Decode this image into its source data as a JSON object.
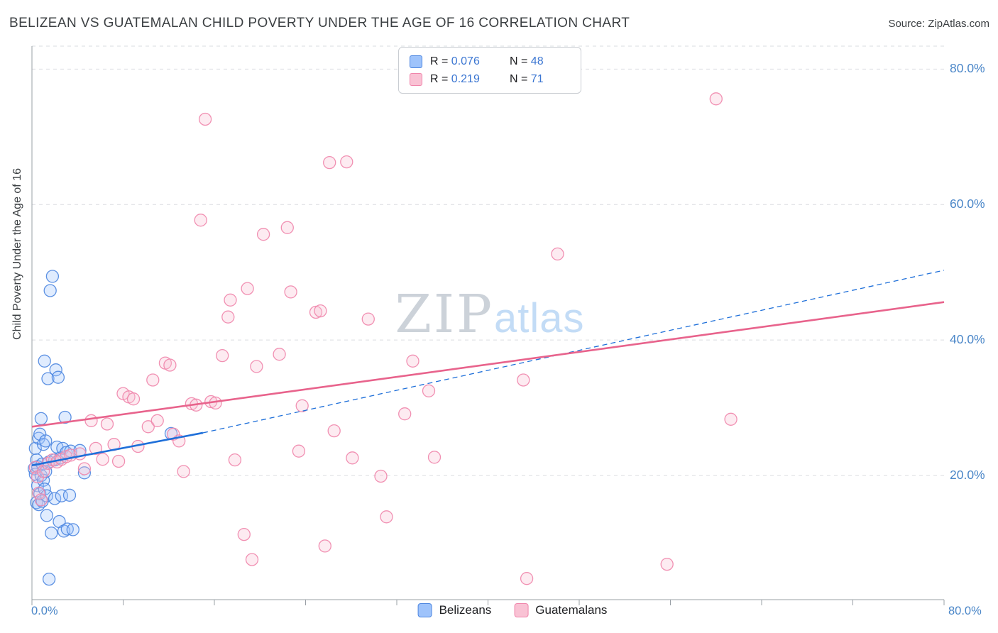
{
  "header": {
    "title": "BELIZEAN VS GUATEMALAN CHILD POVERTY UNDER THE AGE OF 16 CORRELATION CHART",
    "source": "Source: ZipAtlas.com"
  },
  "watermark": {
    "zip": "ZIP",
    "atlas": "atlas"
  },
  "legend_box": {
    "rows": [
      {
        "r_label": "R =",
        "r_value": "0.076",
        "n_label": "N =",
        "n_value": "48"
      },
      {
        "r_label": "R =",
        "r_value": "0.219",
        "n_label": "N =",
        "n_value": "71"
      }
    ]
  },
  "axes": {
    "y_label": "Child Poverty Under the Age of 16",
    "x_min_label": "0.0%",
    "x_max_label": "80.0%"
  },
  "bottom_legend": [
    {
      "label": "Belizeans"
    },
    {
      "label": "Guatemalans"
    }
  ],
  "colors": {
    "accent_blue": "#4a86c8",
    "value_blue": "#3b76d2",
    "blue_fill": "#9ec3fb",
    "blue_stroke": "#4d86e0",
    "pink_fill": "#f9c2d4",
    "pink_stroke": "#f085ab",
    "blue_trend": "#1e6fd9",
    "pink_trend": "#e8638c",
    "grid": "#dadce0",
    "axis": "#9aa0a6"
  },
  "chart_data": {
    "type": "scatter",
    "title": "BELIZEAN VS GUATEMALAN CHILD POVERTY UNDER THE AGE OF 16 CORRELATION CHART",
    "xlabel": "",
    "ylabel": "Child Poverty Under the Age of 16",
    "xlim": [
      0,
      80
    ],
    "ylim": [
      0,
      84
    ],
    "grid": true,
    "legend_position": "top-center",
    "x_tick_count": 11,
    "y_ticks": [
      {
        "value": 20,
        "label": "20.0%"
      },
      {
        "value": 40,
        "label": "40.0%"
      },
      {
        "value": 60,
        "label": "60.0%"
      },
      {
        "value": 80,
        "label": "80.0%"
      }
    ],
    "series": [
      {
        "name": "Belizeans",
        "R": 0.076,
        "N": 48,
        "fill": "#9ec3fb",
        "stroke": "#4d86e0",
        "trend_color": "#1e6fd9",
        "trend_solid": [
          [
            0,
            21.5
          ],
          [
            15,
            26.3
          ]
        ],
        "trend_dashed": [
          [
            15,
            26.3
          ],
          [
            80,
            50.3
          ]
        ],
        "points": [
          [
            0.2,
            21.0
          ],
          [
            0.3,
            20.2
          ],
          [
            0.3,
            24.0
          ],
          [
            0.4,
            16.0
          ],
          [
            0.4,
            22.3
          ],
          [
            0.5,
            18.5
          ],
          [
            0.5,
            21.3
          ],
          [
            0.6,
            15.7
          ],
          [
            0.6,
            25.5
          ],
          [
            0.7,
            17.3
          ],
          [
            0.7,
            26.1
          ],
          [
            0.8,
            20.0
          ],
          [
            0.8,
            28.4
          ],
          [
            0.9,
            16.2
          ],
          [
            0.9,
            21.7
          ],
          [
            1.0,
            19.3
          ],
          [
            1.0,
            24.6
          ],
          [
            1.1,
            18.0
          ],
          [
            1.1,
            36.9
          ],
          [
            1.2,
            20.6
          ],
          [
            1.2,
            25.1
          ],
          [
            1.3,
            14.1
          ],
          [
            1.3,
            17.0
          ],
          [
            1.4,
            34.3
          ],
          [
            1.5,
            4.7
          ],
          [
            1.5,
            22.0
          ],
          [
            1.6,
            47.3
          ],
          [
            1.7,
            11.5
          ],
          [
            1.8,
            49.4
          ],
          [
            2.0,
            16.6
          ],
          [
            2.0,
            22.3
          ],
          [
            2.1,
            35.6
          ],
          [
            2.2,
            24.2
          ],
          [
            2.3,
            34.5
          ],
          [
            2.4,
            13.2
          ],
          [
            2.5,
            22.6
          ],
          [
            2.6,
            17.0
          ],
          [
            2.7,
            24.0
          ],
          [
            2.8,
            11.8
          ],
          [
            2.9,
            28.6
          ],
          [
            3.0,
            23.4
          ],
          [
            3.1,
            12.1
          ],
          [
            3.3,
            17.1
          ],
          [
            3.4,
            23.6
          ],
          [
            3.6,
            12.0
          ],
          [
            4.2,
            23.7
          ],
          [
            4.6,
            20.4
          ],
          [
            12.2,
            26.2
          ]
        ]
      },
      {
        "name": "Guatemalans",
        "R": 0.219,
        "N": 71,
        "fill": "#f9c2d4",
        "stroke": "#f085ab",
        "trend_color": "#e8638c",
        "trend_solid": [
          [
            0,
            27.2
          ],
          [
            80,
            45.6
          ]
        ],
        "points": [
          [
            0.3,
            21.2
          ],
          [
            0.5,
            19.8
          ],
          [
            0.6,
            17.4
          ],
          [
            0.8,
            16.4
          ],
          [
            1.0,
            20.6
          ],
          [
            1.4,
            21.8
          ],
          [
            1.8,
            22.3
          ],
          [
            2.2,
            22.0
          ],
          [
            2.6,
            22.4
          ],
          [
            3.0,
            22.8
          ],
          [
            3.4,
            23.0
          ],
          [
            4.2,
            23.2
          ],
          [
            4.6,
            21.0
          ],
          [
            5.2,
            28.1
          ],
          [
            5.6,
            24.0
          ],
          [
            6.2,
            22.4
          ],
          [
            6.6,
            27.6
          ],
          [
            7.2,
            24.6
          ],
          [
            7.6,
            22.1
          ],
          [
            8.0,
            32.1
          ],
          [
            8.5,
            31.6
          ],
          [
            8.9,
            31.3
          ],
          [
            9.3,
            24.3
          ],
          [
            10.2,
            27.2
          ],
          [
            10.6,
            34.1
          ],
          [
            11.0,
            28.1
          ],
          [
            11.7,
            36.6
          ],
          [
            12.1,
            36.3
          ],
          [
            12.4,
            26.1
          ],
          [
            12.9,
            25.1
          ],
          [
            13.3,
            20.6
          ],
          [
            14.0,
            30.6
          ],
          [
            14.4,
            30.4
          ],
          [
            14.8,
            57.7
          ],
          [
            15.2,
            72.6
          ],
          [
            15.7,
            30.9
          ],
          [
            16.1,
            30.7
          ],
          [
            16.7,
            37.7
          ],
          [
            17.2,
            43.4
          ],
          [
            17.4,
            45.9
          ],
          [
            17.8,
            22.3
          ],
          [
            18.6,
            11.3
          ],
          [
            18.9,
            47.6
          ],
          [
            19.3,
            7.6
          ],
          [
            19.7,
            36.1
          ],
          [
            20.3,
            55.6
          ],
          [
            21.7,
            37.9
          ],
          [
            22.4,
            56.6
          ],
          [
            22.7,
            47.1
          ],
          [
            23.4,
            23.6
          ],
          [
            23.7,
            30.3
          ],
          [
            24.9,
            44.1
          ],
          [
            25.3,
            44.3
          ],
          [
            25.7,
            9.6
          ],
          [
            26.1,
            66.2
          ],
          [
            26.5,
            26.6
          ],
          [
            27.6,
            66.3
          ],
          [
            28.1,
            22.6
          ],
          [
            29.5,
            43.1
          ],
          [
            30.6,
            19.9
          ],
          [
            31.1,
            13.9
          ],
          [
            32.7,
            29.1
          ],
          [
            33.4,
            36.9
          ],
          [
            34.8,
            32.5
          ],
          [
            35.3,
            22.7
          ],
          [
            43.1,
            34.1
          ],
          [
            43.4,
            4.8
          ],
          [
            46.1,
            52.7
          ],
          [
            55.7,
            6.9
          ],
          [
            60.0,
            75.6
          ],
          [
            61.3,
            28.3
          ]
        ]
      }
    ]
  }
}
